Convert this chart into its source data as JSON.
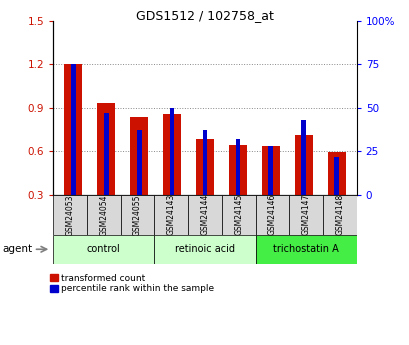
{
  "title": "GDS1512 / 102758_at",
  "samples": [
    "GSM24053",
    "GSM24054",
    "GSM24055",
    "GSM24143",
    "GSM24144",
    "GSM24145",
    "GSM24146",
    "GSM24147",
    "GSM24148"
  ],
  "red_values": [
    1.205,
    0.93,
    0.84,
    0.855,
    0.685,
    0.645,
    0.64,
    0.715,
    0.595
  ],
  "blue_values_pct": [
    75,
    47,
    37,
    50,
    37,
    32,
    28,
    43,
    22
  ],
  "ylim_left": [
    0.3,
    1.5
  ],
  "ylim_right": [
    0,
    100
  ],
  "yticks_left": [
    0.3,
    0.6,
    0.9,
    1.2,
    1.5
  ],
  "yticks_right": [
    0,
    25,
    50,
    75,
    100
  ],
  "ytick_labels_right": [
    "0",
    "25",
    "50",
    "75",
    "100%"
  ],
  "groups": [
    {
      "label": "control",
      "indices": [
        0,
        1,
        2
      ],
      "color": "#ccffcc"
    },
    {
      "label": "retinoic acid",
      "indices": [
        3,
        4,
        5
      ],
      "color": "#ccffcc"
    },
    {
      "label": "trichostatin A",
      "indices": [
        6,
        7,
        8
      ],
      "color": "#44ee44"
    }
  ],
  "red_color": "#cc1100",
  "blue_color": "#0000cc",
  "bar_width": 0.55,
  "blue_bar_width": 0.15,
  "grid_color": "#888888",
  "tick_cell_color": "#d8d8d8",
  "legend_red": "transformed count",
  "legend_blue": "percentile rank within the sample",
  "agent_label": "agent"
}
